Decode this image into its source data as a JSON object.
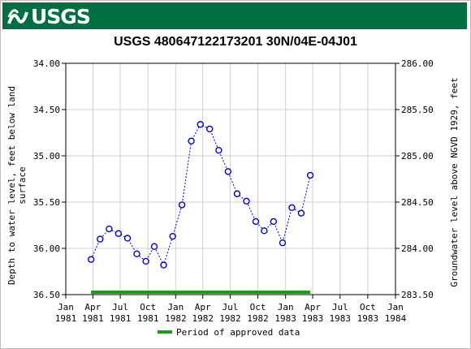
{
  "header": {
    "logo_text": "USGS"
  },
  "chart_data": {
    "type": "scatter",
    "title": "USGS 480647122173201 30N/04E-04J01",
    "ylabel_left": "Depth to water level, feet below land surface",
    "ylabel_left_lines": [
      "Depth to water level, feet below land",
      "surface"
    ],
    "ylabel_right": "Groundwater level above NGVD 1929, feet",
    "y_left_range": [
      34.0,
      36.5
    ],
    "y_left_inverted": true,
    "y_right_range": [
      283.5,
      286.0
    ],
    "y_left_ticks": [
      "34.00",
      "34.50",
      "35.00",
      "35.50",
      "36.00",
      "36.50"
    ],
    "y_right_ticks": [
      "286.00",
      "285.50",
      "285.00",
      "284.50",
      "284.00",
      "283.50"
    ],
    "x_range": [
      "1981-01-01",
      "1984-01-01"
    ],
    "x_ticks": [
      {
        "date": "1981-01-01",
        "line1": "Jan",
        "line2": "1981"
      },
      {
        "date": "1981-04-01",
        "line1": "Apr",
        "line2": "1981"
      },
      {
        "date": "1981-07-01",
        "line1": "Jul",
        "line2": "1981"
      },
      {
        "date": "1981-10-01",
        "line1": "Oct",
        "line2": "1981"
      },
      {
        "date": "1982-01-01",
        "line1": "Jan",
        "line2": "1982"
      },
      {
        "date": "1982-04-01",
        "line1": "Apr",
        "line2": "1982"
      },
      {
        "date": "1982-07-01",
        "line1": "Jul",
        "line2": "1982"
      },
      {
        "date": "1982-10-01",
        "line1": "Oct",
        "line2": "1982"
      },
      {
        "date": "1983-01-01",
        "line1": "Jan",
        "line2": "1983"
      },
      {
        "date": "1983-04-01",
        "line1": "Apr",
        "line2": "1983"
      },
      {
        "date": "1983-07-01",
        "line1": "Jul",
        "line2": "1983"
      },
      {
        "date": "1983-10-01",
        "line1": "Oct",
        "line2": "1983"
      },
      {
        "date": "1984-01-01",
        "line1": "Jan",
        "line2": "1984"
      }
    ],
    "grid": true,
    "series": [
      {
        "style": "dotted-line-with-circle-markers",
        "color": "#0000cc",
        "points": [
          {
            "date": "1981-03-26",
            "y": 36.12
          },
          {
            "date": "1981-04-25",
            "y": 35.9
          },
          {
            "date": "1981-05-25",
            "y": 35.79
          },
          {
            "date": "1981-06-25",
            "y": 35.84
          },
          {
            "date": "1981-07-25",
            "y": 35.89
          },
          {
            "date": "1981-08-25",
            "y": 36.06
          },
          {
            "date": "1981-09-24",
            "y": 36.14
          },
          {
            "date": "1981-10-22",
            "y": 35.98
          },
          {
            "date": "1981-11-22",
            "y": 36.18
          },
          {
            "date": "1981-12-22",
            "y": 35.87
          },
          {
            "date": "1982-01-22",
            "y": 35.53
          },
          {
            "date": "1982-02-22",
            "y": 34.84
          },
          {
            "date": "1982-03-24",
            "y": 34.66
          },
          {
            "date": "1982-04-24",
            "y": 34.71
          },
          {
            "date": "1982-05-24",
            "y": 34.94
          },
          {
            "date": "1982-06-24",
            "y": 35.17
          },
          {
            "date": "1982-07-24",
            "y": 35.41
          },
          {
            "date": "1982-08-24",
            "y": 35.49
          },
          {
            "date": "1982-09-24",
            "y": 35.71
          },
          {
            "date": "1982-10-22",
            "y": 35.81
          },
          {
            "date": "1982-11-22",
            "y": 35.71
          },
          {
            "date": "1982-12-22",
            "y": 35.94
          },
          {
            "date": "1983-01-22",
            "y": 35.56
          },
          {
            "date": "1983-02-22",
            "y": 35.62
          },
          {
            "date": "1983-03-24",
            "y": 35.21
          }
        ]
      }
    ],
    "approved_period": {
      "start": "1981-03-26",
      "end": "1983-03-24",
      "color": "#1a9e1a"
    },
    "legend": {
      "label": "Period of approved data",
      "placement": "bottom-center"
    }
  }
}
